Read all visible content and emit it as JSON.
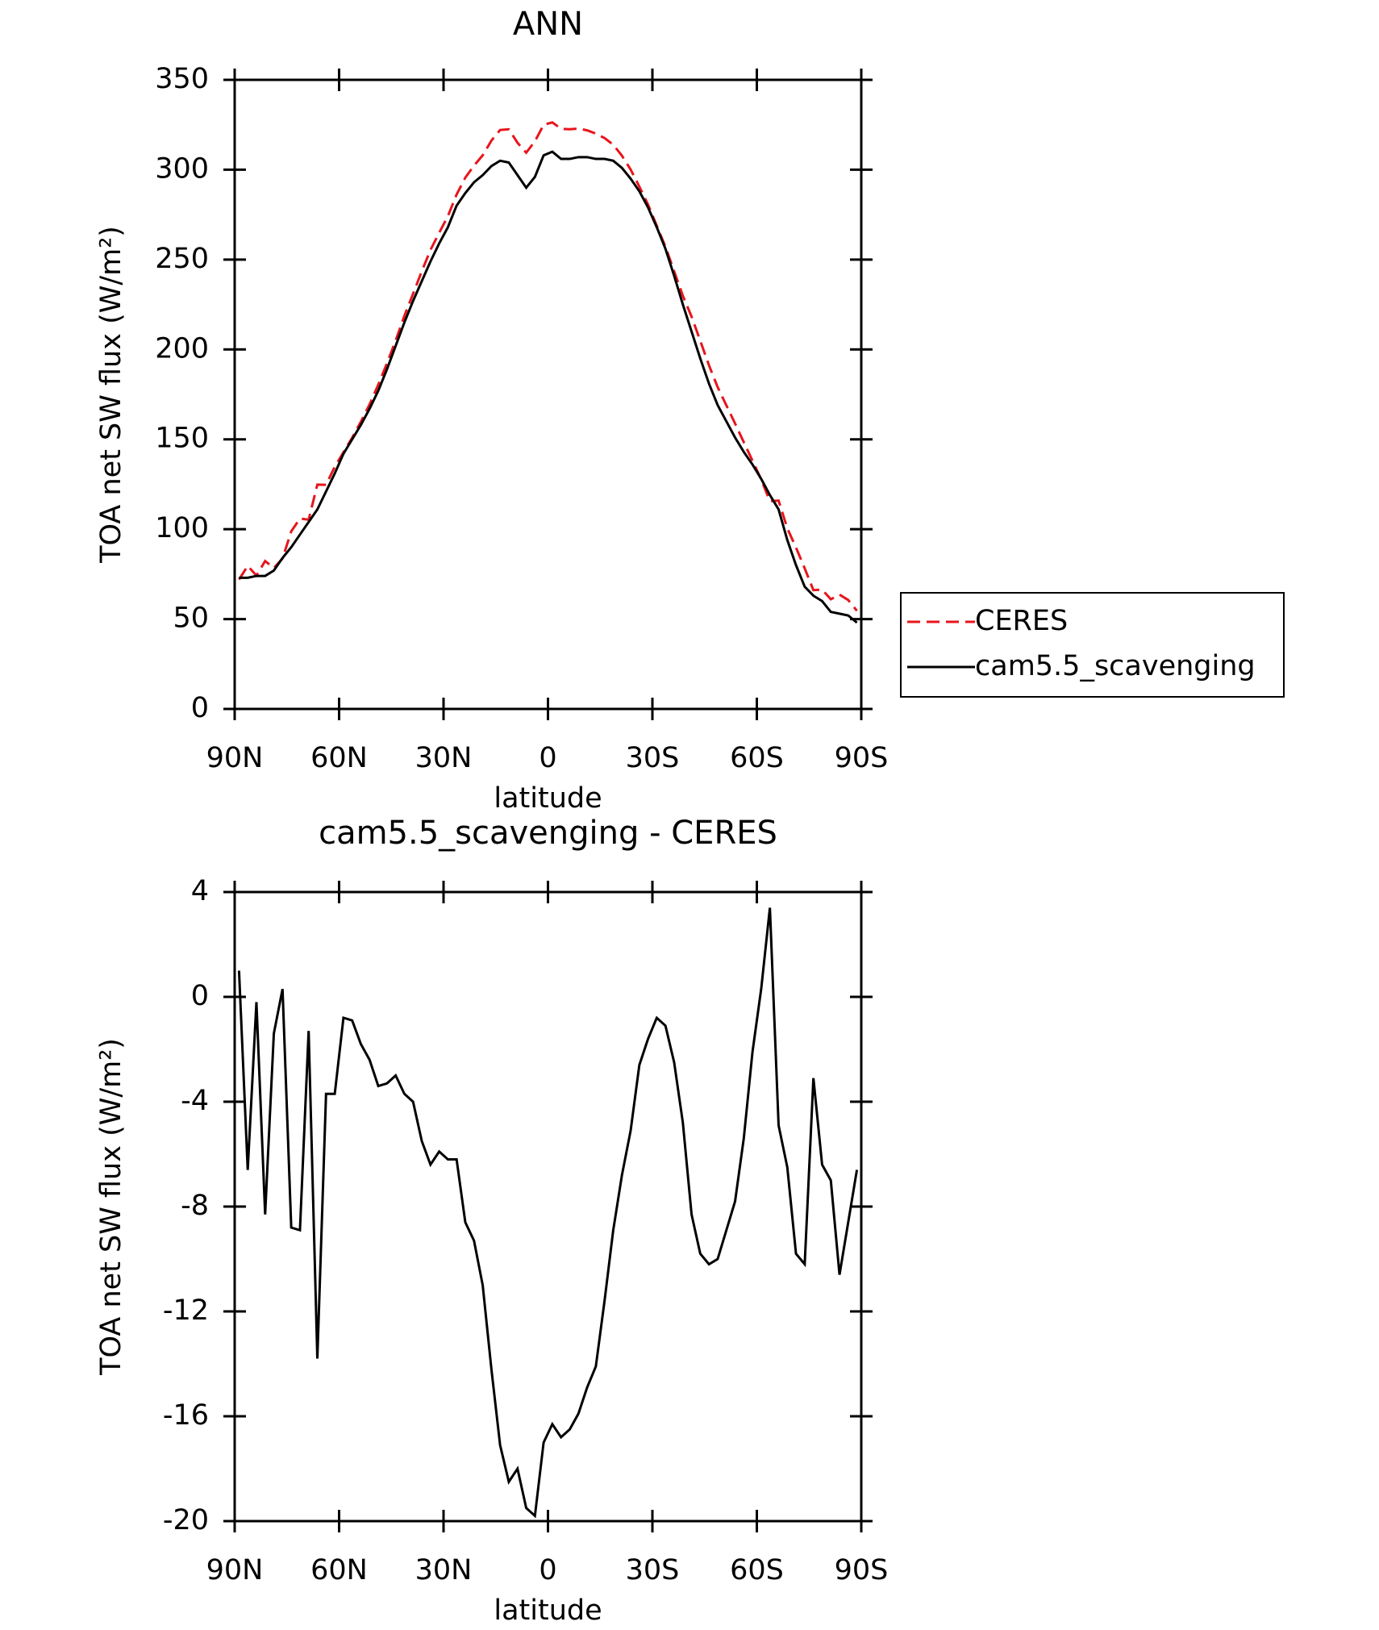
{
  "chart_data": [
    {
      "type": "line",
      "title": "ANN",
      "x_label": "latitude",
      "y_label": "TOA net SW flux (W/m²)",
      "x": [
        88.75,
        86.25,
        83.75,
        81.25,
        78.75,
        76.25,
        73.75,
        71.25,
        68.75,
        66.25,
        63.75,
        61.25,
        58.75,
        56.25,
        53.75,
        51.25,
        48.75,
        46.25,
        43.75,
        41.25,
        38.75,
        36.25,
        33.75,
        31.25,
        28.75,
        26.25,
        23.75,
        21.25,
        18.75,
        16.25,
        13.75,
        11.25,
        8.75,
        6.25,
        3.75,
        1.25,
        -1.25,
        -3.75,
        -6.25,
        -8.75,
        -11.25,
        -13.75,
        -16.25,
        -18.75,
        -21.25,
        -23.75,
        -26.25,
        -28.75,
        -31.25,
        -33.75,
        -36.25,
        -38.75,
        -41.25,
        -43.75,
        -46.25,
        -48.75,
        -51.25,
        -53.75,
        -56.25,
        -58.75,
        -61.25,
        -63.75,
        -66.25,
        -68.75,
        -71.25,
        -73.75,
        -76.25,
        -78.75,
        -81.25,
        -83.75,
        -86.25,
        -88.75
      ],
      "series": [
        {
          "name": "CERES",
          "color": "#e8141b",
          "dash": true,
          "values": [
            72,
            79.6,
            74.2,
            82.3,
            78.4,
            83.7,
            98.8,
            105.9,
            105.3,
            124.8,
            124.7,
            134.7,
            142.8,
            150.9,
            159.8,
            169.4,
            180.4,
            192.3,
            205,
            218.7,
            231,
            243.5,
            255.4,
            264.9,
            274.2,
            286.2,
            295.6,
            302.3,
            308,
            316.2,
            322.1,
            322.5,
            315,
            309.5,
            315.8,
            325,
            326.3,
            322.8,
            322.5,
            322.9,
            321.9,
            320.1,
            317.6,
            313.9,
            307.8,
            300.1,
            290.6,
            280.6,
            268.8,
            257.1,
            243.5,
            229.8,
            218.3,
            204.8,
            191.2,
            179,
            168.9,
            158.8,
            148.4,
            138.1,
            127.7,
            115.6,
            115.9,
            100.5,
            89.8,
            78.2,
            66.1,
            66.4,
            61,
            63.6,
            60.6,
            54.6
          ]
        },
        {
          "name": "cam5.5_scavenging",
          "color": "#000000",
          "dash": false,
          "values": [
            73,
            73,
            74,
            74,
            77,
            84,
            90,
            97,
            104,
            111,
            121,
            131,
            142,
            150,
            158,
            167,
            177,
            189,
            202,
            215,
            227,
            238,
            249,
            259,
            268,
            280,
            287,
            293,
            297,
            302,
            305,
            304,
            297,
            290,
            296,
            308,
            310,
            306,
            306,
            307,
            307,
            306,
            306,
            305,
            301,
            295,
            288,
            279,
            268,
            256,
            241,
            225,
            210,
            195,
            181,
            169,
            160,
            151,
            143,
            136,
            128,
            119,
            111,
            94,
            80,
            68,
            63,
            60,
            54,
            53,
            52,
            48
          ]
        }
      ],
      "xlim": [
        90,
        -90
      ],
      "xticks": [
        {
          "value": 90,
          "label": "90N"
        },
        {
          "value": 60,
          "label": "60N"
        },
        {
          "value": 30,
          "label": "30N"
        },
        0,
        {
          "value": -30,
          "label": "30S"
        },
        {
          "value": -60,
          "label": "60S"
        },
        {
          "value": -90,
          "label": "90S"
        }
      ],
      "ylim": [
        0,
        350
      ],
      "yticks": [
        0,
        50,
        100,
        150,
        200,
        250,
        300,
        350
      ],
      "legend": "right"
    },
    {
      "type": "line",
      "title": "cam5.5_scavenging - CERES",
      "x_label": "latitude",
      "y_label": "TOA net SW flux (W/m²)",
      "x": [
        88.75,
        86.25,
        83.75,
        81.25,
        78.75,
        76.25,
        73.75,
        71.25,
        68.75,
        66.25,
        63.75,
        61.25,
        58.75,
        56.25,
        53.75,
        51.25,
        48.75,
        46.25,
        43.75,
        41.25,
        38.75,
        36.25,
        33.75,
        31.25,
        28.75,
        26.25,
        23.75,
        21.25,
        18.75,
        16.25,
        13.75,
        11.25,
        8.75,
        6.25,
        3.75,
        1.25,
        -1.25,
        -3.75,
        -6.25,
        -8.75,
        -11.25,
        -13.75,
        -16.25,
        -18.75,
        -21.25,
        -23.75,
        -26.25,
        -28.75,
        -31.25,
        -33.75,
        -36.25,
        -38.75,
        -41.25,
        -43.75,
        -46.25,
        -48.75,
        -51.25,
        -53.75,
        -56.25,
        -58.75,
        -61.25,
        -63.75,
        -66.25,
        -68.75,
        -71.25,
        -73.75,
        -76.25,
        -78.75,
        -81.25,
        -83.75,
        -86.25,
        -88.75
      ],
      "series": [
        {
          "color": "#000000",
          "dash": false,
          "values": [
            1.0,
            -6.6,
            -0.2,
            -8.3,
            -1.4,
            0.3,
            -8.8,
            -8.9,
            -1.3,
            -13.8,
            -3.7,
            -3.7,
            -0.8,
            -0.9,
            -1.8,
            -2.4,
            -3.4,
            -3.3,
            -3.0,
            -3.7,
            -4.0,
            -5.5,
            -6.4,
            -5.9,
            -6.2,
            -6.2,
            -8.6,
            -9.3,
            -11.0,
            -14.2,
            -17.1,
            -18.5,
            -18.0,
            -19.5,
            -19.8,
            -17.0,
            -16.3,
            -16.8,
            -16.5,
            -15.9,
            -14.9,
            -14.1,
            -11.6,
            -8.9,
            -6.8,
            -5.1,
            -2.6,
            -1.6,
            -0.8,
            -1.1,
            -2.5,
            -4.8,
            -8.3,
            -9.8,
            -10.2,
            -10.0,
            -8.9,
            -7.8,
            -5.4,
            -2.1,
            0.3,
            3.4,
            -4.9,
            -6.5,
            -9.8,
            -10.2,
            -3.1,
            -6.4,
            -7.0,
            -10.6,
            -8.6,
            -6.6
          ]
        }
      ],
      "xlim": [
        90,
        -90
      ],
      "xticks": [
        {
          "value": 90,
          "label": "90N"
        },
        {
          "value": 60,
          "label": "60N"
        },
        {
          "value": 30,
          "label": "30N"
        },
        0,
        {
          "value": -30,
          "label": "30S"
        },
        {
          "value": -60,
          "label": "60S"
        },
        {
          "value": -90,
          "label": "90S"
        }
      ],
      "ylim": [
        -20,
        4
      ],
      "yticks": [
        -20,
        -16,
        -12,
        -8,
        -4,
        0,
        4
      ]
    }
  ]
}
